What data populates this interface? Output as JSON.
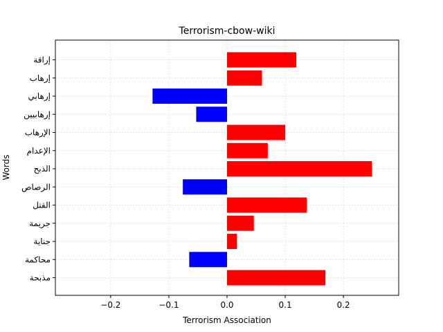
{
  "chart_data": {
    "type": "bar",
    "orientation": "horizontal",
    "title": "Terrorism-cbow-wiki",
    "xlabel": "Terrorism Association",
    "ylabel": "Words",
    "xlim": [
      -0.295,
      0.295
    ],
    "xticks": [
      -0.2,
      -0.1,
      0.0,
      0.1,
      0.2
    ],
    "xtick_labels": [
      "−0.2",
      "−0.1",
      "0.0",
      "0.1",
      "0.2"
    ],
    "grid": true,
    "categories": [
      "إراقة",
      "إرهاب",
      "إرهابي",
      "إرهابيين",
      "الإرهاب",
      "الإعدام",
      "الذبح",
      "الرصاص",
      "القتل",
      "جريمة",
      "جناية",
      "محاكمة",
      "مذبحة"
    ],
    "values": [
      0.119,
      0.06,
      -0.128,
      -0.053,
      0.1,
      0.07,
      0.249,
      -0.076,
      0.137,
      0.046,
      0.017,
      -0.065,
      0.169
    ],
    "colors": {
      "positive": "#ff0000",
      "negative": "#0000ff"
    }
  }
}
